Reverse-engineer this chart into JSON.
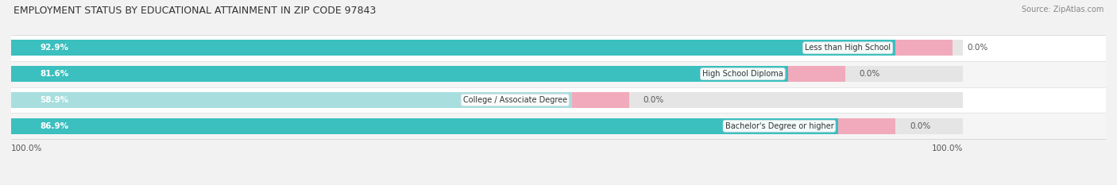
{
  "title": "EMPLOYMENT STATUS BY EDUCATIONAL ATTAINMENT IN ZIP CODE 97843",
  "source": "Source: ZipAtlas.com",
  "categories": [
    "Less than High School",
    "High School Diploma",
    "College / Associate Degree",
    "Bachelor's Degree or higher"
  ],
  "labor_force_pct": [
    92.9,
    81.6,
    58.9,
    86.9
  ],
  "unemployed_pct": [
    0.0,
    0.0,
    0.0,
    0.0
  ],
  "bar_max": 100.0,
  "labor_force_color": "#3bbfbf",
  "labor_force_color_light": "#a8dede",
  "unemployed_color": "#f4a0b5",
  "row_colors": [
    "#f0f0f0",
    "#e8e8e8",
    "#f0f0f0",
    "#e8e8e8"
  ],
  "title_fontsize": 9,
  "label_fontsize": 7.5,
  "tick_fontsize": 7.5,
  "legend_fontsize": 8,
  "left_axis_label": "100.0%",
  "right_axis_label": "100.0%"
}
